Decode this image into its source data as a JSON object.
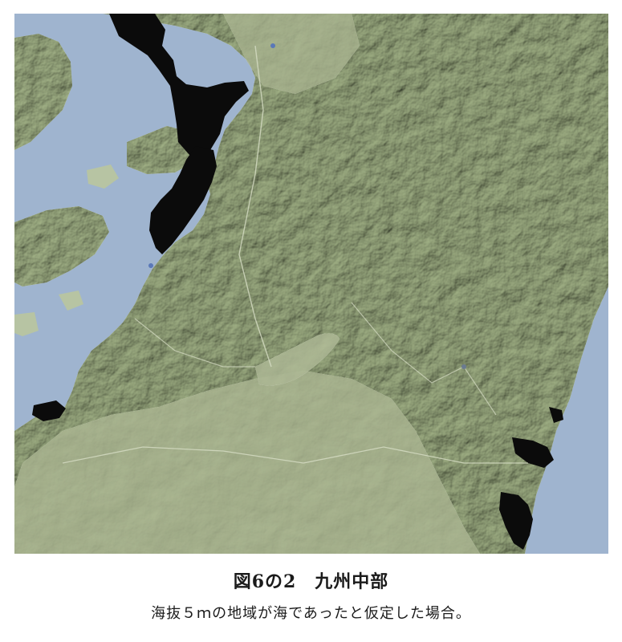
{
  "figure": {
    "title": "図6の2　九州中部",
    "description": "海抜５ｍの地域が海であったと仮定した場合。"
  },
  "map": {
    "colors": {
      "sea": "#9fb4cf",
      "land": "#b7c4a3",
      "land_light": "#c8d2b4",
      "mountain_shade": "#8f9c7e",
      "flooded_lowland": "#0b0b0b"
    }
  }
}
